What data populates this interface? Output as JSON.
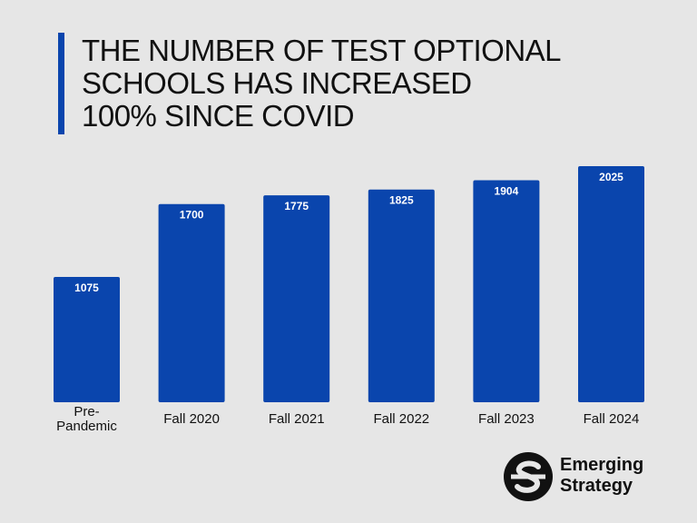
{
  "title": "THE NUMBER OF TEST OPTIONAL\nSCHOOLS HAS INCREASED\n100% SINCE COVID",
  "colors": {
    "background": "#e6e6e6",
    "bar": "#0a45ad",
    "accent": "#0a45ad",
    "value_label": "#ffffff",
    "text": "#111111"
  },
  "chart_data": {
    "type": "bar",
    "title": "THE NUMBER OF TEST OPTIONAL SCHOOLS HAS INCREASED 100% SINCE COVID",
    "categories": [
      "Pre-\nPandemic",
      "Fall 2020",
      "Fall 2021",
      "Fall 2022",
      "Fall 2023",
      "Fall 2024"
    ],
    "values": [
      1075,
      1700,
      1775,
      1825,
      1904,
      2025
    ],
    "xlabel": "",
    "ylabel": "",
    "ylim": [
      0,
      2025
    ],
    "grid": false,
    "legend": "none",
    "data_labels": "inside-top"
  },
  "logo": {
    "icon": "emerging-strategy-logo-icon",
    "line1": "Emerging",
    "line2": "Strategy"
  }
}
